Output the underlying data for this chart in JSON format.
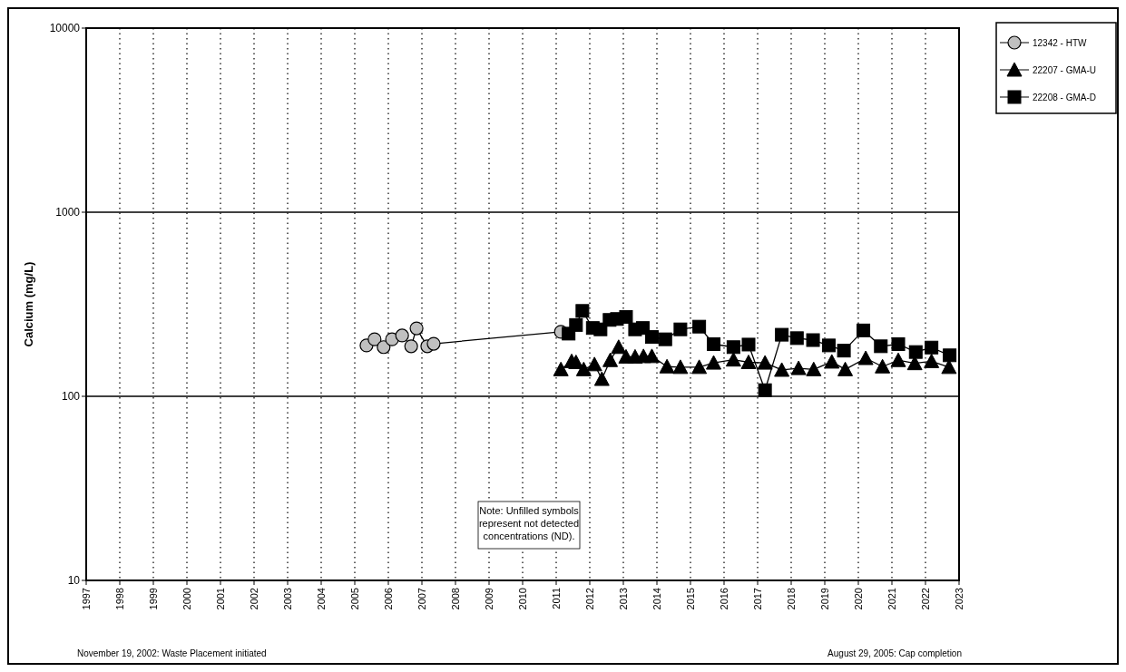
{
  "chart_data": {
    "type": "line",
    "ylabel": "Calcium (mg/L)",
    "log": true,
    "grid": true,
    "legend": "top right",
    "xlim": [
      1997,
      2023
    ],
    "xticks": [
      1997,
      1998,
      1999,
      2000,
      2001,
      2002,
      2003,
      2004,
      2005,
      2006,
      2007,
      2008,
      2009,
      2010,
      2011,
      2012,
      2013,
      2014,
      2015,
      2016,
      2017,
      2018,
      2019,
      2020,
      2021,
      2022,
      2023
    ],
    "ylim": [
      10,
      10000
    ],
    "yticks": [
      10,
      100,
      1000,
      10000
    ],
    "annotations": [
      "Note: Unfilled symbols represent not detected concentrations (ND).",
      "November 19, 2002:  Waste Placement initiated",
      "August 29, 2005:  Cap completion"
    ],
    "series": [
      {
        "name": "12342 - HTW",
        "color": "#c0c0c0",
        "marker": "circle",
        "x": [
          2005.35,
          2005.59,
          2005.86,
          2006.11,
          2006.41,
          2006.68,
          2006.84,
          2007.16,
          2007.35,
          2011.14
        ],
        "values": [
          189,
          204,
          185,
          204,
          214,
          187,
          234,
          187,
          193,
          224
        ]
      },
      {
        "name": "22207 - GMA-U",
        "color": "#000000",
        "marker": "triangle",
        "x": [
          2011.14,
          2011.46,
          2011.59,
          2011.82,
          2012.14,
          2012.36,
          2012.61,
          2012.86,
          2013.08,
          2013.35,
          2013.6,
          2013.85,
          2014.3,
          2014.7,
          2015.26,
          2015.69,
          2016.28,
          2016.73,
          2017.22,
          2017.72,
          2018.22,
          2018.67,
          2019.21,
          2019.61,
          2020.22,
          2020.72,
          2021.19,
          2021.68,
          2022.18,
          2022.7
        ],
        "values": [
          140,
          155,
          153,
          140,
          149,
          124,
          157,
          185,
          164,
          164,
          165,
          165,
          145,
          144,
          144,
          152,
          158,
          153,
          152,
          139,
          142,
          140,
          154,
          140,
          161,
          145,
          157,
          151,
          155,
          144
        ]
      },
      {
        "name": "22208 - GMA-D",
        "color": "#000000",
        "marker": "square",
        "x": [
          2011.37,
          2011.59,
          2011.78,
          2012.09,
          2012.32,
          2012.59,
          2012.81,
          2013.08,
          2013.35,
          2013.58,
          2013.85,
          2014.25,
          2014.7,
          2015.26,
          2015.69,
          2016.28,
          2016.73,
          2017.22,
          2017.72,
          2018.17,
          2018.65,
          2019.12,
          2019.57,
          2020.15,
          2020.67,
          2021.19,
          2021.71,
          2022.18,
          2022.72
        ],
        "values": [
          219,
          244,
          291,
          235,
          231,
          260,
          263,
          270,
          231,
          235,
          210,
          204,
          231,
          239,
          192,
          185,
          191,
          108,
          216,
          207,
          202,
          189,
          177,
          228,
          187,
          192,
          174,
          184,
          167
        ]
      }
    ]
  }
}
